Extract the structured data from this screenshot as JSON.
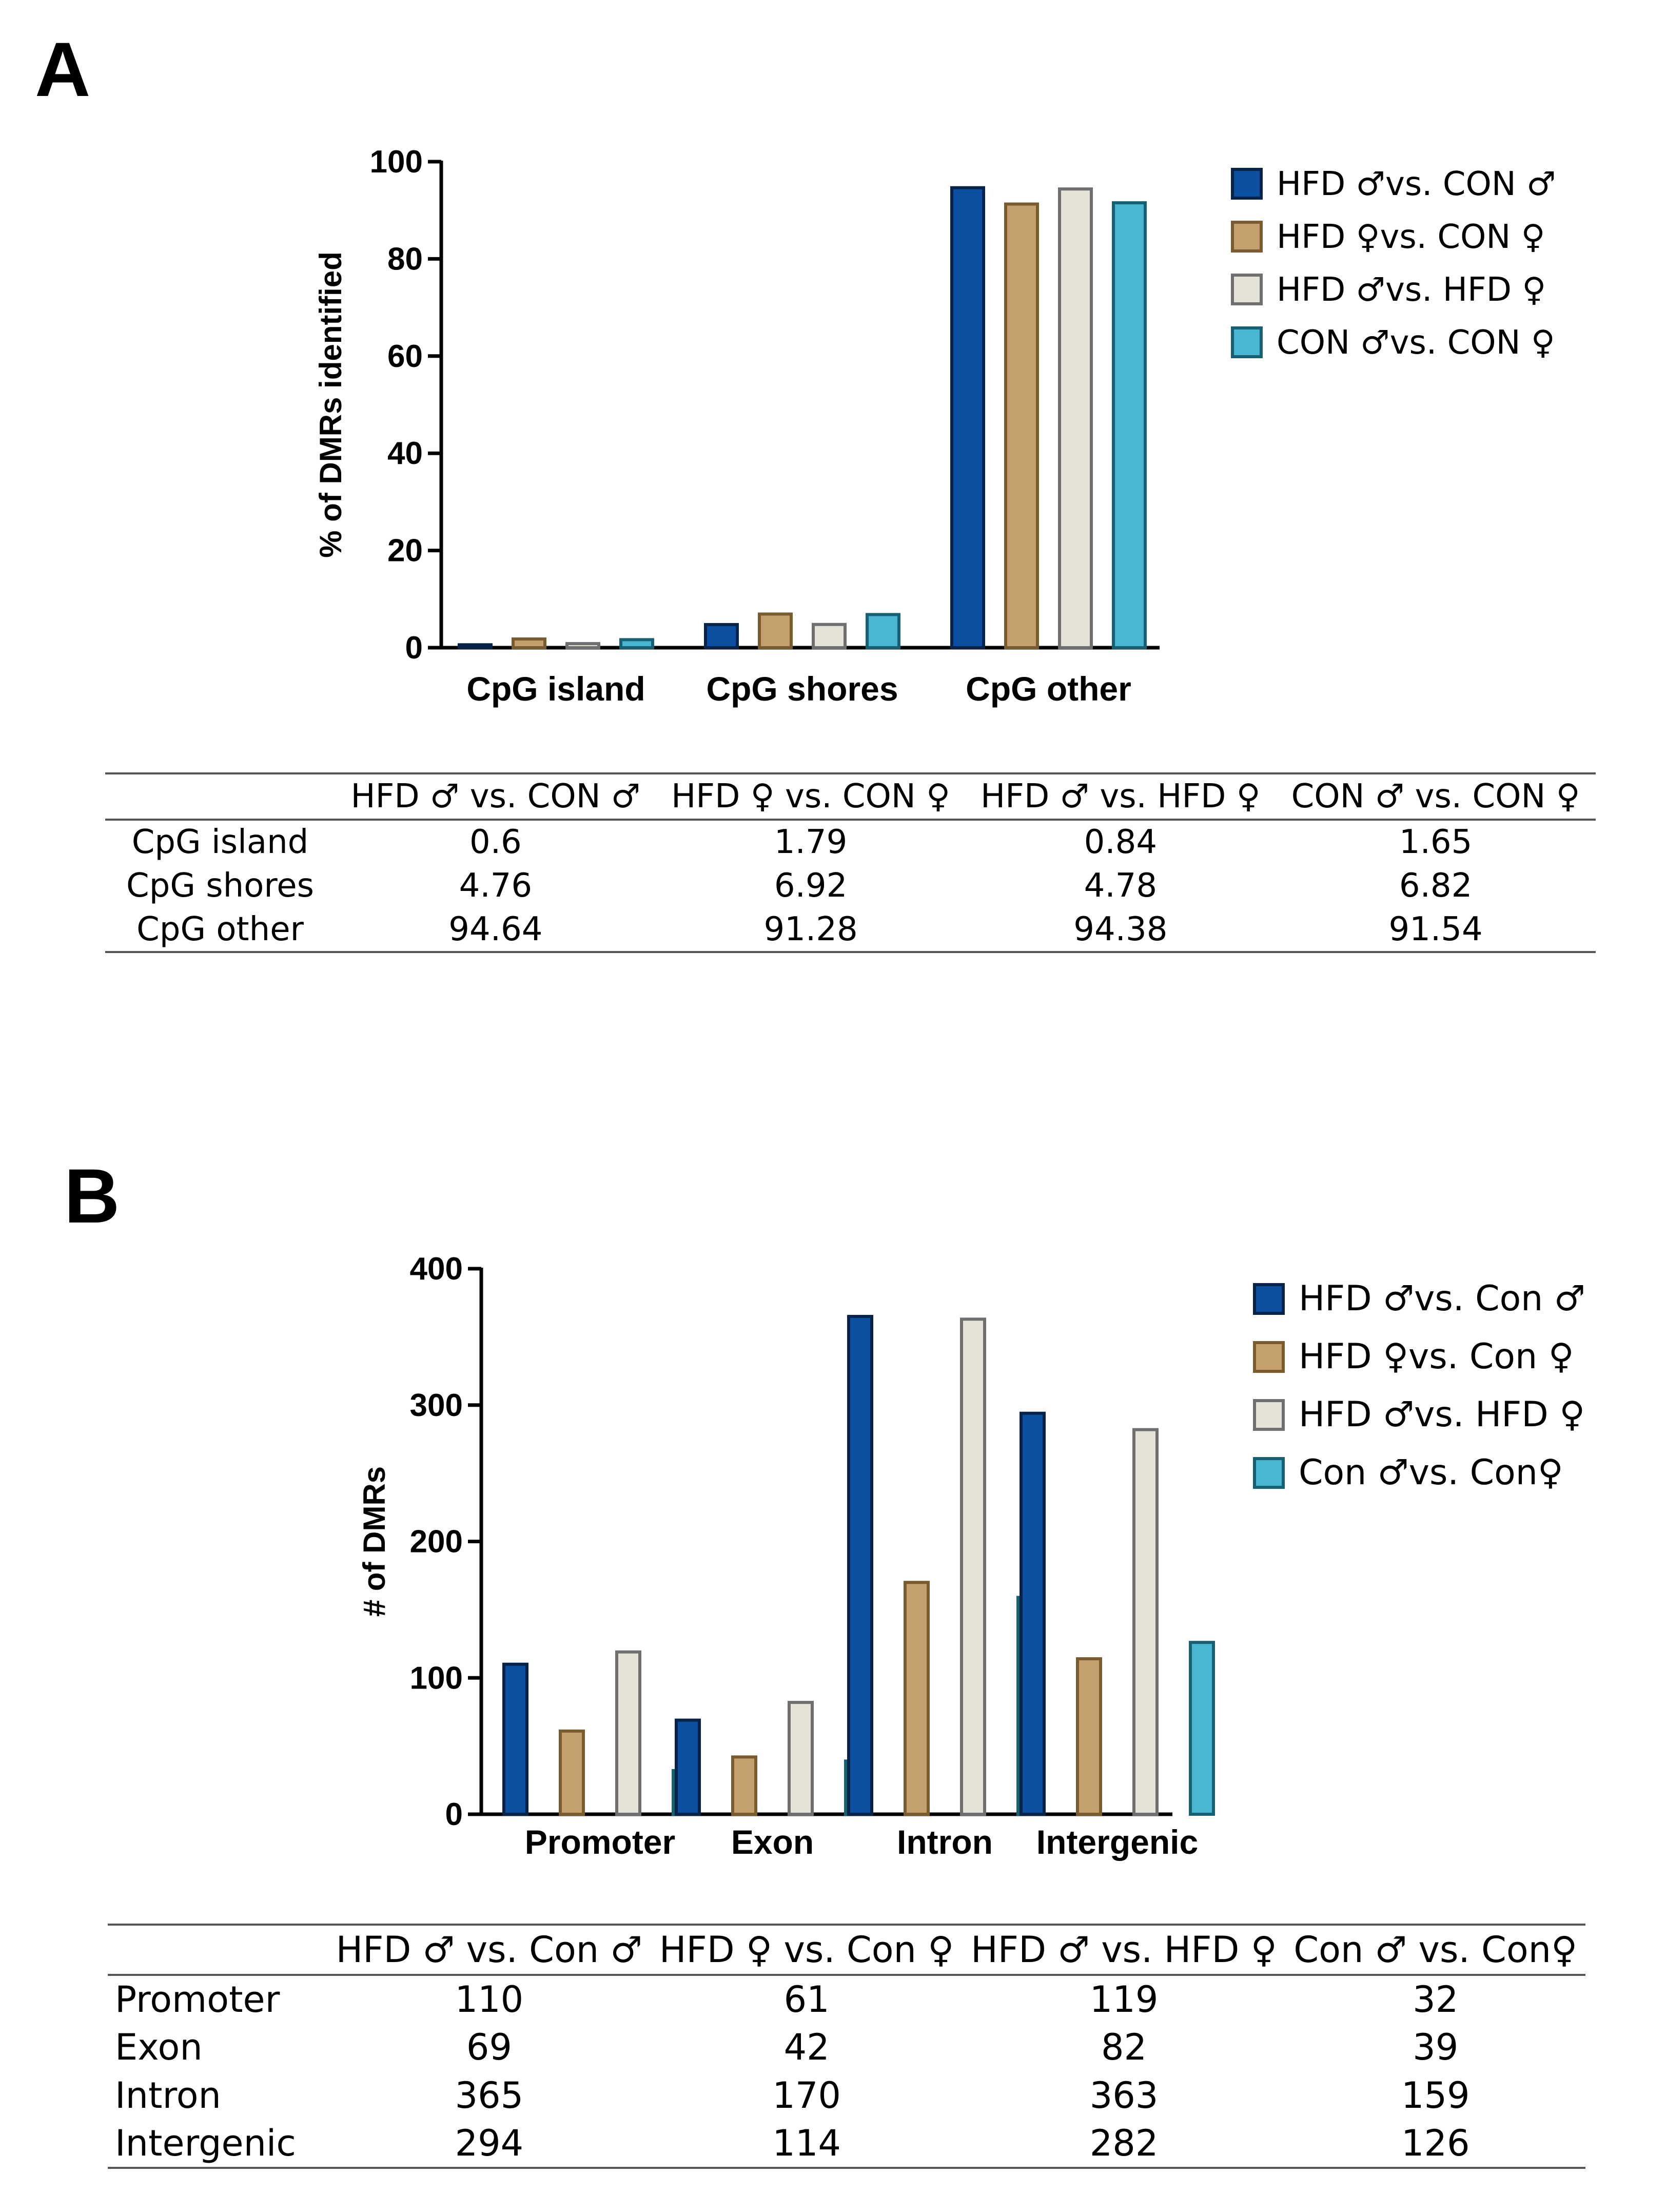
{
  "panels": {
    "a_label": "A",
    "b_label": "B"
  },
  "colors": {
    "series": [
      {
        "fill": "#0b4fa0",
        "stroke": "#08234a"
      },
      {
        "fill": "#c4a06f",
        "stroke": "#7a5b30"
      },
      {
        "fill": "#e5e2d8",
        "stroke": "#6f6f6f"
      },
      {
        "fill": "#4ab7d2",
        "stroke": "#175f73"
      }
    ]
  },
  "chart_data": [
    {
      "type": "bar",
      "title": "",
      "xlabel": "",
      "ylabel": "% of DMRs identified",
      "ylim": [
        0,
        100
      ],
      "yticks": [
        0,
        20,
        40,
        60,
        80,
        100
      ],
      "categories": [
        "CpG island",
        "CpG shores",
        "CpG other"
      ],
      "series": [
        {
          "name": "HFD ♂vs. CON ♂",
          "values": [
            0.6,
            4.76,
            94.64
          ]
        },
        {
          "name": "HFD ♀vs. CON ♀",
          "values": [
            1.79,
            6.92,
            91.28
          ]
        },
        {
          "name": "HFD ♂vs. HFD ♀",
          "values": [
            0.84,
            4.78,
            94.38
          ]
        },
        {
          "name": "CON ♂vs. CON ♀",
          "values": [
            1.65,
            6.82,
            91.54
          ]
        }
      ],
      "legend": "top-right",
      "grid": false
    },
    {
      "type": "bar",
      "title": "",
      "xlabel": "",
      "ylabel": "# of DMRs",
      "ylim": [
        0,
        400
      ],
      "yticks": [
        0,
        100,
        200,
        300,
        400
      ],
      "categories": [
        "Promoter",
        "Exon",
        "Intron",
        "Intergenic"
      ],
      "series": [
        {
          "name": "HFD ♂vs. Con ♂",
          "values": [
            110,
            69,
            365,
            294
          ]
        },
        {
          "name": "HFD ♀vs. Con ♀",
          "values": [
            61,
            42,
            170,
            114
          ]
        },
        {
          "name": "HFD ♂vs. HFD ♀",
          "values": [
            119,
            82,
            363,
            282
          ]
        },
        {
          "name": "Con ♂vs. Con♀",
          "values": [
            32,
            39,
            159,
            126
          ]
        }
      ],
      "legend": "top-right",
      "grid": false
    }
  ],
  "table_a": {
    "columns": [
      "",
      "HFD ♂ vs. CON ♂",
      "HFD ♀ vs. CON ♀",
      "HFD ♂ vs. HFD ♀",
      "CON ♂ vs. CON ♀"
    ],
    "rows": [
      {
        "label": "CpG island",
        "values": [
          "0.6",
          "1.79",
          "0.84",
          "1.65"
        ]
      },
      {
        "label": "CpG shores",
        "values": [
          "4.76",
          "6.92",
          "4.78",
          "6.82"
        ]
      },
      {
        "label": "CpG other",
        "values": [
          "94.64",
          "91.28",
          "94.38",
          "91.54"
        ]
      }
    ]
  },
  "table_b": {
    "columns": [
      "",
      "HFD ♂ vs. Con ♂",
      "HFD ♀ vs. Con ♀",
      "HFD ♂ vs. HFD ♀",
      "Con ♂ vs. Con♀"
    ],
    "rows": [
      {
        "label": "Promoter",
        "values": [
          "110",
          "61",
          "119",
          "32"
        ]
      },
      {
        "label": "Exon",
        "values": [
          "69",
          "42",
          "82",
          "39"
        ]
      },
      {
        "label": "Intron",
        "values": [
          "365",
          "170",
          "363",
          "159"
        ]
      },
      {
        "label": "Intergenic",
        "values": [
          "294",
          "114",
          "282",
          "126"
        ]
      }
    ]
  }
}
